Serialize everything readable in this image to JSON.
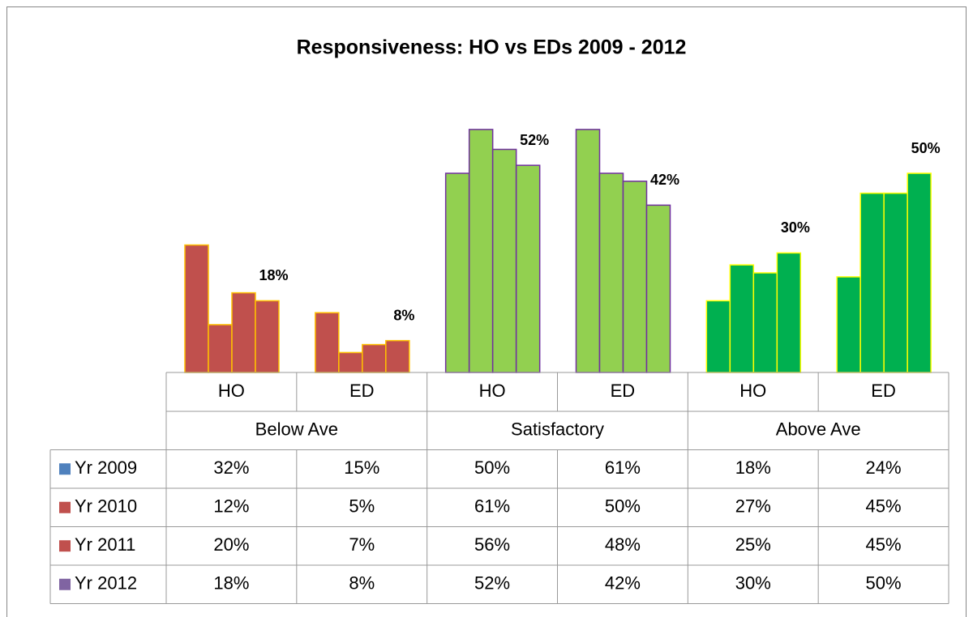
{
  "chart_data": {
    "type": "bar",
    "title": "Responsiveness: HO vs EDs 2009 - 2012",
    "categories": [
      "HO",
      "ED",
      "HO",
      "ED",
      "HO",
      "ED"
    ],
    "groups": [
      {
        "name": "Below Ave",
        "color": "#c0504d",
        "edge_color": "#ffc000"
      },
      {
        "name": "Satisfactory",
        "color": "#92d050",
        "edge_color": "#7030a0"
      },
      {
        "name": "Above Ave",
        "color": "#00b050",
        "edge_color": "#ffff00"
      }
    ],
    "series": [
      {
        "name": "Yr 2009",
        "color": "#4f81bd",
        "values": [
          32,
          15,
          50,
          61,
          18,
          24
        ],
        "value_labels": [
          "32%",
          "15%",
          "50%",
          "61%",
          "18%",
          "24%"
        ]
      },
      {
        "name": "Yr 2010",
        "color": "#c0504d",
        "values": [
          12,
          5,
          61,
          50,
          27,
          45
        ],
        "value_labels": [
          "12%",
          "5%",
          "61%",
          "50%",
          "27%",
          "45%"
        ]
      },
      {
        "name": "Yr 2011",
        "color": "#c0504d",
        "values": [
          20,
          7,
          56,
          48,
          25,
          45
        ],
        "value_labels": [
          "20%",
          "7%",
          "56%",
          "48%",
          "25%",
          "45%"
        ]
      },
      {
        "name": "Yr 2012",
        "color": "#8064a2",
        "values": [
          18,
          8,
          52,
          42,
          30,
          50
        ],
        "value_labels": [
          "18%",
          "8%",
          "52%",
          "42%",
          "30%",
          "50%"
        ]
      }
    ],
    "labelled_series": 3
  }
}
